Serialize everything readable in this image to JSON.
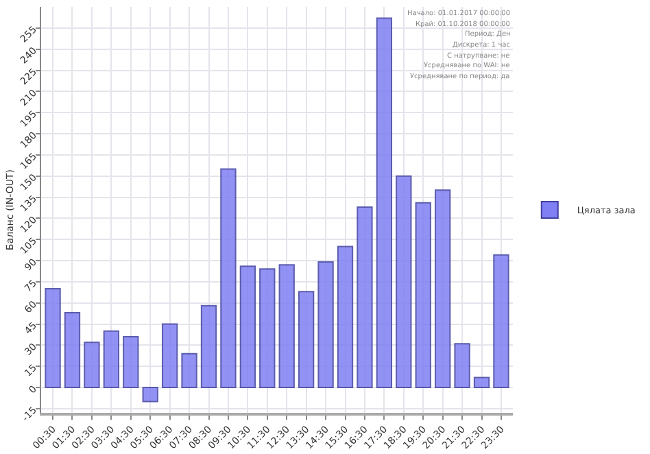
{
  "chart_data": {
    "type": "bar",
    "ylabel": "Баланс (IN-OUT)",
    "categories": [
      "00:30",
      "01:30",
      "02:30",
      "03:30",
      "04:30",
      "05:30",
      "06:30",
      "07:30",
      "08:30",
      "09:30",
      "10:30",
      "11:30",
      "12:30",
      "13:30",
      "14:30",
      "15:30",
      "16:30",
      "17:30",
      "18:30",
      "19:30",
      "20:30",
      "21:30",
      "22:30",
      "23:30"
    ],
    "series": [
      {
        "name": "Цялата зала",
        "color": "#8080f4",
        "values": [
          70,
          53,
          32,
          40,
          36,
          -10,
          45,
          24,
          58,
          155,
          86,
          84,
          87,
          68,
          89,
          100,
          128,
          262,
          150,
          131,
          140,
          31,
          7,
          94
        ]
      }
    ],
    "ylim": [
      -18,
      270
    ],
    "yticks": [
      -15,
      0,
      15,
      30,
      45,
      60,
      75,
      90,
      105,
      120,
      135,
      150,
      165,
      180,
      195,
      210,
      225,
      240,
      255
    ],
    "grid": true,
    "legend": "right",
    "annotations": [
      "Начало: 01.01.2017 00:00:00",
      "Край: 01.10.2018 00:00:00",
      "Период: Ден",
      "Дискрета: 1 час",
      "С натрупване: не",
      "Усредняване по WAI: не",
      "Усредняване по период: да"
    ]
  }
}
